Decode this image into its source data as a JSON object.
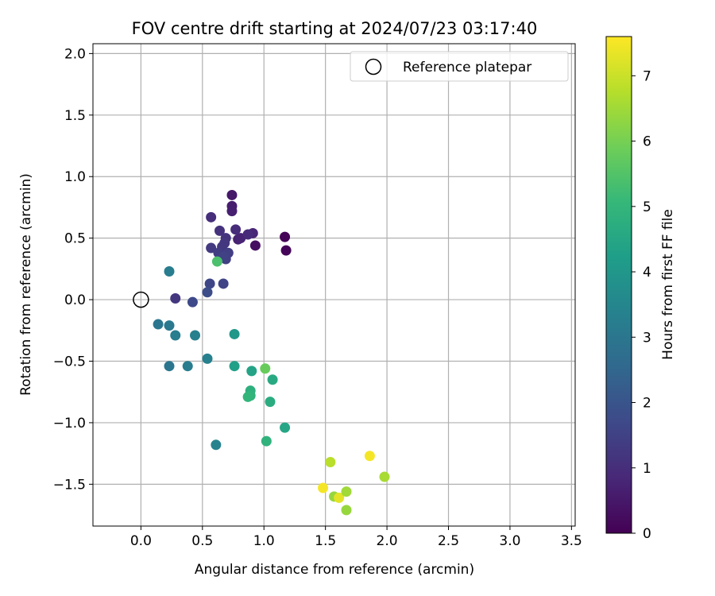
{
  "chart_data": {
    "type": "scatter",
    "title": "FOV centre drift starting at 2024/07/23 03:17:40",
    "xlabel": "Angular distance from reference (arcmin)",
    "ylabel": "Rotation from reference (arcmin)",
    "xlim": [
      -0.39,
      3.53
    ],
    "ylim": [
      -1.84,
      2.08
    ],
    "x_ticks": [
      0.0,
      0.5,
      1.0,
      1.5,
      2.0,
      2.5,
      3.0,
      3.5
    ],
    "x_tick_labels": [
      "0.0",
      "0.5",
      "1.0",
      "1.5",
      "2.0",
      "2.5",
      "3.0",
      "3.5"
    ],
    "y_ticks": [
      -1.5,
      -1.0,
      -0.5,
      0.0,
      0.5,
      1.0,
      1.5,
      2.0
    ],
    "y_tick_labels": [
      "−1.5",
      "−1.0",
      "−0.5",
      "0.0",
      "0.5",
      "1.0",
      "1.5",
      "2.0"
    ],
    "grid": true,
    "legend": {
      "position": "top-right",
      "entries": [
        "Reference platepar"
      ]
    },
    "reference_point": {
      "x": 0.0,
      "y": 0.0,
      "label": "Reference platepar"
    },
    "colorbar": {
      "label": "Hours from first FF file",
      "range": [
        0,
        7.6
      ],
      "ticks": [
        0,
        1,
        2,
        3,
        4,
        5,
        6,
        7
      ],
      "tick_labels": [
        "0",
        "1",
        "2",
        "3",
        "4",
        "5",
        "6",
        "7"
      ],
      "colormap": "viridis"
    },
    "series": [
      {
        "name": "FOV centre",
        "points": [
          {
            "x": 1.17,
            "y": 0.51,
            "c": 0.05
          },
          {
            "x": 1.18,
            "y": 0.4,
            "c": 0.1
          },
          {
            "x": 0.93,
            "y": 0.44,
            "c": 0.3
          },
          {
            "x": 0.74,
            "y": 0.85,
            "c": 0.5
          },
          {
            "x": 0.74,
            "y": 0.76,
            "c": 0.6
          },
          {
            "x": 0.74,
            "y": 0.72,
            "c": 0.65
          },
          {
            "x": 0.79,
            "y": 0.49,
            "c": 0.7
          },
          {
            "x": 0.81,
            "y": 0.5,
            "c": 0.75
          },
          {
            "x": 0.91,
            "y": 0.54,
            "c": 0.8
          },
          {
            "x": 0.87,
            "y": 0.53,
            "c": 0.9
          },
          {
            "x": 0.77,
            "y": 0.57,
            "c": 0.95
          },
          {
            "x": 0.57,
            "y": 0.67,
            "c": 1.0
          },
          {
            "x": 0.64,
            "y": 0.56,
            "c": 1.1
          },
          {
            "x": 0.69,
            "y": 0.5,
            "c": 1.15
          },
          {
            "x": 0.68,
            "y": 0.46,
            "c": 1.2
          },
          {
            "x": 0.66,
            "y": 0.43,
            "c": 1.25
          },
          {
            "x": 0.57,
            "y": 0.42,
            "c": 1.3
          },
          {
            "x": 0.63,
            "y": 0.38,
            "c": 1.35
          },
          {
            "x": 0.71,
            "y": 0.38,
            "c": 1.4
          },
          {
            "x": 0.69,
            "y": 0.33,
            "c": 1.45
          },
          {
            "x": 0.67,
            "y": 0.35,
            "c": 1.5
          },
          {
            "x": 0.67,
            "y": 0.13,
            "c": 1.55
          },
          {
            "x": 0.56,
            "y": 0.13,
            "c": 1.6
          },
          {
            "x": 0.54,
            "y": 0.06,
            "c": 1.8
          },
          {
            "x": 0.28,
            "y": 0.01,
            "c": 1.2
          },
          {
            "x": 0.42,
            "y": -0.02,
            "c": 1.7
          },
          {
            "x": 0.23,
            "y": 0.23,
            "c": 3.2
          },
          {
            "x": 0.14,
            "y": -0.2,
            "c": 3.0
          },
          {
            "x": 0.23,
            "y": -0.21,
            "c": 3.1
          },
          {
            "x": 0.28,
            "y": -0.29,
            "c": 3.2
          },
          {
            "x": 0.44,
            "y": -0.29,
            "c": 3.3
          },
          {
            "x": 0.23,
            "y": -0.54,
            "c": 3.0
          },
          {
            "x": 0.38,
            "y": -0.54,
            "c": 3.2
          },
          {
            "x": 0.54,
            "y": -0.48,
            "c": 3.3
          },
          {
            "x": 0.61,
            "y": -1.18,
            "c": 3.4
          },
          {
            "x": 0.76,
            "y": -0.28,
            "c": 4.0
          },
          {
            "x": 0.62,
            "y": 0.31,
            "c": 5.4
          },
          {
            "x": 0.76,
            "y": -0.54,
            "c": 4.3
          },
          {
            "x": 0.9,
            "y": -0.58,
            "c": 4.4
          },
          {
            "x": 1.01,
            "y": -0.56,
            "c": 5.8
          },
          {
            "x": 1.07,
            "y": -0.65,
            "c": 4.6
          },
          {
            "x": 0.89,
            "y": -0.74,
            "c": 4.8
          },
          {
            "x": 0.89,
            "y": -0.78,
            "c": 4.9
          },
          {
            "x": 0.87,
            "y": -0.79,
            "c": 5.0
          },
          {
            "x": 1.05,
            "y": -0.83,
            "c": 4.7
          },
          {
            "x": 1.17,
            "y": -1.04,
            "c": 4.5
          },
          {
            "x": 1.02,
            "y": -1.15,
            "c": 4.9
          },
          {
            "x": 1.54,
            "y": -1.32,
            "c": 6.8
          },
          {
            "x": 1.86,
            "y": -1.27,
            "c": 7.5
          },
          {
            "x": 1.98,
            "y": -1.44,
            "c": 6.6
          },
          {
            "x": 1.48,
            "y": -1.53,
            "c": 7.5
          },
          {
            "x": 1.57,
            "y": -1.6,
            "c": 6.4
          },
          {
            "x": 1.61,
            "y": -1.61,
            "c": 7.3
          },
          {
            "x": 1.67,
            "y": -1.56,
            "c": 6.5
          },
          {
            "x": 1.67,
            "y": -1.71,
            "c": 6.4
          }
        ]
      }
    ]
  },
  "colors": {
    "grid": "#b0b0b0",
    "axis": "#000000",
    "background": "#ffffff",
    "legend_border": "#cccccc",
    "viridis": [
      "#440154",
      "#482878",
      "#3e4989",
      "#31688e",
      "#26828e",
      "#1f9e89",
      "#35b779",
      "#6ece58",
      "#b5de2b",
      "#fde725"
    ]
  }
}
